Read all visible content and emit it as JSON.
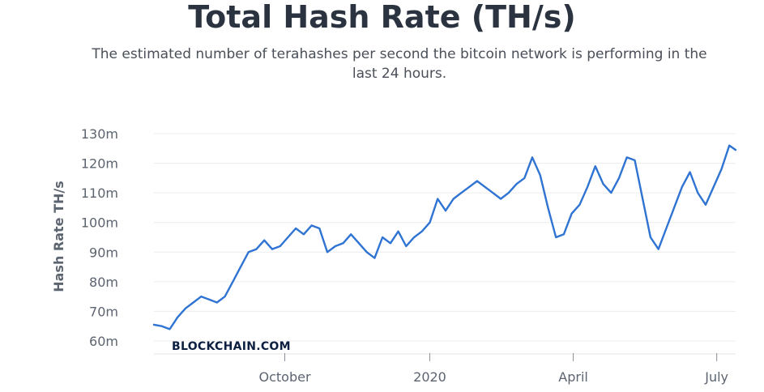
{
  "header": {
    "title": "Total Hash Rate (TH/s)",
    "subtitle": "The estimated number of terahashes per second the bitcoin network is performing in the last 24 hours."
  },
  "brand": "BLOCKCHAIN.COM",
  "colors": {
    "line": "#2f73d3",
    "grid": "#ececec",
    "text": "#5c6470"
  },
  "chart_data": {
    "type": "line",
    "title": "Total Hash Rate (TH/s)",
    "ylabel": "Hash Rate TH/s",
    "xlabel": "",
    "ylim": [
      60,
      130
    ],
    "yticks": [
      60,
      70,
      80,
      90,
      100,
      110,
      120,
      130
    ],
    "ytick_labels": [
      "60m",
      "70m",
      "80m",
      "90m",
      "100m",
      "110m",
      "120m",
      "130m"
    ],
    "xlim": [
      "2019-07-10",
      "2020-07-13"
    ],
    "xticks": [
      {
        "date": "2019-10-01",
        "label": "October"
      },
      {
        "date": "2020-01-01",
        "label": "2020"
      },
      {
        "date": "2020-04-01",
        "label": "April"
      },
      {
        "date": "2020-07-01",
        "label": "July"
      }
    ],
    "grid": "horizontal",
    "series": [
      {
        "x": [
          "2019-07-10",
          "2019-07-15",
          "2019-07-20",
          "2019-07-25",
          "2019-07-30",
          "2019-08-04",
          "2019-08-09",
          "2019-08-14",
          "2019-08-19",
          "2019-08-24",
          "2019-08-29",
          "2019-09-03",
          "2019-09-08",
          "2019-09-13",
          "2019-09-18",
          "2019-09-23",
          "2019-09-28",
          "2019-10-03",
          "2019-10-08",
          "2019-10-13",
          "2019-10-18",
          "2019-10-23",
          "2019-10-28",
          "2019-11-02",
          "2019-11-07",
          "2019-11-12",
          "2019-11-17",
          "2019-11-22",
          "2019-11-27",
          "2019-12-02",
          "2019-12-07",
          "2019-12-12",
          "2019-12-17",
          "2019-12-22",
          "2019-12-27",
          "2020-01-01",
          "2020-01-06",
          "2020-01-11",
          "2020-01-16",
          "2020-01-21",
          "2020-01-26",
          "2020-01-31",
          "2020-02-05",
          "2020-02-10",
          "2020-02-15",
          "2020-02-20",
          "2020-02-25",
          "2020-03-01",
          "2020-03-06",
          "2020-03-11",
          "2020-03-16",
          "2020-03-21",
          "2020-03-26",
          "2020-03-31",
          "2020-04-05",
          "2020-04-10",
          "2020-04-15",
          "2020-04-20",
          "2020-04-25",
          "2020-04-30",
          "2020-05-05",
          "2020-05-10",
          "2020-05-15",
          "2020-05-20",
          "2020-05-25",
          "2020-05-30",
          "2020-06-04",
          "2020-06-09",
          "2020-06-14",
          "2020-06-19",
          "2020-06-24",
          "2020-06-29",
          "2020-07-04",
          "2020-07-09",
          "2020-07-13"
        ],
        "values": [
          65.5,
          65,
          64,
          68,
          71,
          73,
          75,
          74,
          73,
          75,
          80,
          85,
          90,
          91,
          94,
          91,
          92,
          95,
          98,
          96,
          99,
          98,
          90,
          92,
          93,
          96,
          93,
          90,
          88,
          95,
          93,
          97,
          92,
          95,
          97,
          100,
          108,
          104,
          108,
          110,
          112,
          114,
          112,
          110,
          108,
          110,
          113,
          115,
          122,
          116,
          105,
          95,
          96,
          103,
          106,
          112,
          119,
          113,
          110,
          115,
          122,
          121,
          108,
          95,
          91,
          98,
          105,
          112,
          117,
          110,
          106,
          112,
          118,
          126,
          124.5
        ]
      }
    ]
  }
}
